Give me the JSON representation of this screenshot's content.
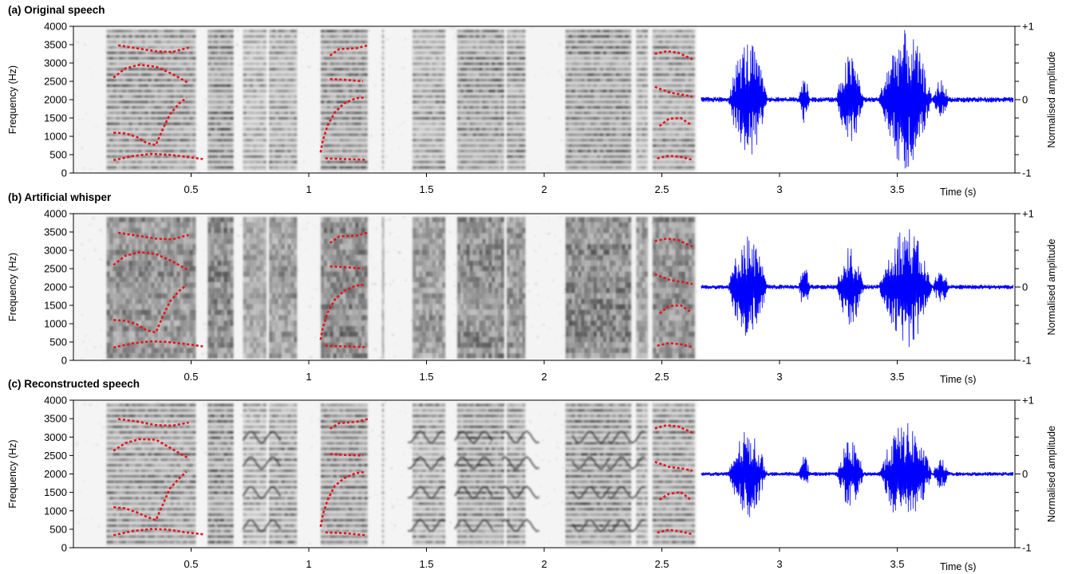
{
  "chart_data": {
    "type": "spectrogram-waveform",
    "x_unit": "s",
    "x_axis_label": "Time (s)",
    "x_ticks": [
      0.5,
      1,
      1.5,
      2,
      2.5,
      3,
      3.5
    ],
    "x_range": [
      0,
      4
    ],
    "spectrogram_x_range": [
      0,
      2.65
    ],
    "waveform_x_range": [
      2.65,
      4
    ],
    "y_left_label": "Frequency (Hz)",
    "y_left_ticks": [
      0,
      500,
      1000,
      1500,
      2000,
      2500,
      3000,
      3500,
      4000
    ],
    "y_left_range": [
      0,
      4000
    ],
    "y_right_label": "Normalised amplitude",
    "y_right_ticks": [
      "-1",
      "0",
      "+1"
    ],
    "y_right_range": [
      -1,
      1
    ],
    "colors": {
      "formant_track": "#e8141b",
      "waveform": "#0000ff",
      "spectrogram_ink": "#2a2a2a"
    },
    "panels": [
      {
        "title": "(a) Original speech",
        "waveform_peak": 0.95,
        "noise_level": 0.25
      },
      {
        "title": "(b) Artificial whisper",
        "waveform_peak": 0.85,
        "noise_level": 0.6
      },
      {
        "title": "(c) Reconstructed speech",
        "waveform_peak": 0.7,
        "noise_level": 0.35
      }
    ],
    "formant_tracks": [
      [
        [
          0.17,
          1100
        ],
        [
          0.22,
          1080
        ],
        [
          0.27,
          980
        ],
        [
          0.31,
          820
        ],
        [
          0.35,
          760
        ],
        [
          0.38,
          1200
        ],
        [
          0.41,
          1600
        ],
        [
          0.45,
          1900
        ],
        [
          0.48,
          2050
        ]
      ],
      [
        [
          0.17,
          350
        ],
        [
          0.25,
          460
        ],
        [
          0.33,
          520
        ],
        [
          0.4,
          500
        ],
        [
          0.47,
          450
        ],
        [
          0.55,
          380
        ]
      ],
      [
        [
          0.17,
          2600
        ],
        [
          0.22,
          2850
        ],
        [
          0.28,
          2950
        ],
        [
          0.35,
          2900
        ],
        [
          0.42,
          2700
        ],
        [
          0.49,
          2450
        ]
      ],
      [
        [
          0.19,
          3480
        ],
        [
          0.27,
          3400
        ],
        [
          0.35,
          3320
        ],
        [
          0.42,
          3300
        ],
        [
          0.49,
          3420
        ]
      ],
      [
        [
          1.05,
          560
        ],
        [
          1.06,
          900
        ],
        [
          1.08,
          1300
        ],
        [
          1.11,
          1650
        ],
        [
          1.15,
          1900
        ],
        [
          1.2,
          2040
        ],
        [
          1.24,
          2060
        ]
      ],
      [
        [
          1.09,
          2560
        ],
        [
          1.16,
          2540
        ],
        [
          1.23,
          2500
        ]
      ],
      [
        [
          1.09,
          3200
        ],
        [
          1.13,
          3380
        ],
        [
          1.2,
          3400
        ],
        [
          1.25,
          3480
        ]
      ],
      [
        [
          1.07,
          400
        ],
        [
          1.15,
          380
        ],
        [
          1.24,
          360
        ]
      ],
      [
        [
          2.47,
          3250
        ],
        [
          2.52,
          3320
        ],
        [
          2.57,
          3280
        ],
        [
          2.63,
          3100
        ]
      ],
      [
        [
          2.47,
          2350
        ],
        [
          2.53,
          2200
        ],
        [
          2.59,
          2130
        ],
        [
          2.63,
          2080
        ]
      ],
      [
        [
          2.49,
          1280
        ],
        [
          2.53,
          1480
        ],
        [
          2.58,
          1500
        ],
        [
          2.62,
          1330
        ]
      ],
      [
        [
          2.48,
          400
        ],
        [
          2.53,
          470
        ],
        [
          2.58,
          440
        ],
        [
          2.63,
          360
        ]
      ]
    ],
    "segments": [
      [
        0.14,
        0.52,
        0.8
      ],
      [
        0.57,
        0.68,
        0.95
      ],
      [
        0.72,
        0.82,
        0.55
      ],
      [
        0.83,
        0.95,
        0.7
      ],
      [
        1.05,
        1.25,
        0.9
      ],
      [
        1.31,
        1.32,
        0.3
      ],
      [
        1.44,
        1.58,
        0.7
      ],
      [
        1.63,
        1.83,
        0.85
      ],
      [
        1.84,
        1.92,
        0.75
      ],
      [
        2.09,
        2.37,
        0.9
      ],
      [
        2.39,
        2.44,
        0.6
      ],
      [
        2.46,
        2.64,
        0.8
      ]
    ]
  }
}
